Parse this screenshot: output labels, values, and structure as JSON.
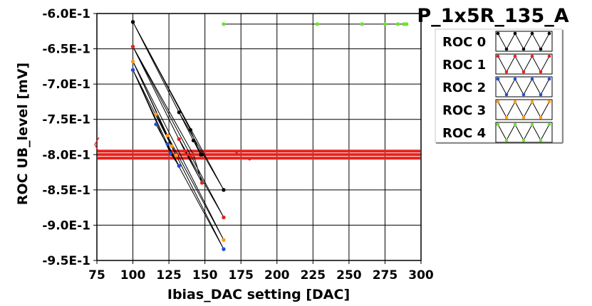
{
  "chart_data": {
    "type": "line",
    "title": "P_1x5R_135_A",
    "xlabel": "Ibias_DAC setting [DAC]",
    "ylabel": "ROC UB_level [mV]",
    "xlim": [
      75,
      300
    ],
    "ylim": [
      -0.95,
      -0.6
    ],
    "x_ticks": [
      "75",
      "100",
      "125",
      "150",
      "175",
      "200",
      "225",
      "250",
      "275",
      "300"
    ],
    "y_ticks": [
      "-6.0E-1",
      "-6.5E-1",
      "-7.0E-1",
      "-7.5E-1",
      "-8.0E-1",
      "-8.5E-1",
      "-9.0E-1",
      "-9.5E-1"
    ],
    "grid": true,
    "legend_position": "top-right",
    "series": [
      {
        "name": "ROC 0",
        "color": "#000000",
        "x": [
          100,
          163,
          100,
          140,
          147,
          132,
          163,
          100,
          142,
          148
        ],
        "y": [
          -0.612,
          -0.85,
          -0.612,
          -0.765,
          -0.8,
          -0.74,
          -0.85,
          -0.612,
          -0.78,
          -0.8
        ]
      },
      {
        "name": "ROC 1",
        "color": "#e8211b",
        "x": [
          100,
          163,
          100,
          136,
          148,
          132,
          163,
          100,
          142,
          148
        ],
        "y": [
          -0.647,
          -0.889,
          -0.647,
          -0.795,
          -0.84,
          -0.778,
          -0.889,
          -0.647,
          -0.8,
          -0.84
        ]
      },
      {
        "name": "ROC 2",
        "color": "#1f4fd8",
        "x": [
          100,
          163,
          100,
          124,
          132,
          116,
          163,
          100,
          126,
          132
        ],
        "y": [
          -0.68,
          -0.934,
          -0.68,
          -0.785,
          -0.816,
          -0.757,
          -0.934,
          -0.68,
          -0.798,
          -0.816
        ]
      },
      {
        "name": "ROC 3",
        "color": "#ff9a18",
        "x": [
          100,
          163,
          100,
          124,
          130,
          116,
          163,
          100,
          127,
          130
        ],
        "y": [
          -0.668,
          -0.921,
          -0.668,
          -0.773,
          -0.801,
          -0.743,
          -0.921,
          -0.668,
          -0.788,
          -0.801
        ]
      },
      {
        "name": "ROC 4",
        "color": "#6de22a",
        "x": [
          163,
          228,
          259,
          275,
          284,
          288,
          290
        ],
        "y": [
          -0.615,
          -0.615,
          -0.615,
          -0.615,
          -0.615,
          -0.615,
          -0.615
        ]
      }
    ],
    "extra_points": [
      {
        "x": 138,
        "y": -0.8,
        "color": "#e8211b"
      },
      {
        "x": 140,
        "y": -0.802,
        "color": "#e8211b"
      },
      {
        "x": 172,
        "y": -0.796,
        "color": "#e8211b"
      },
      {
        "x": 181,
        "y": -0.806,
        "color": "#e8211b"
      }
    ],
    "reference_lines": [
      {
        "y": -0.795,
        "color": "#e8211b"
      },
      {
        "y": -0.8,
        "color": "#e8211b"
      },
      {
        "y": -0.805,
        "color": "#e8211b"
      }
    ]
  }
}
